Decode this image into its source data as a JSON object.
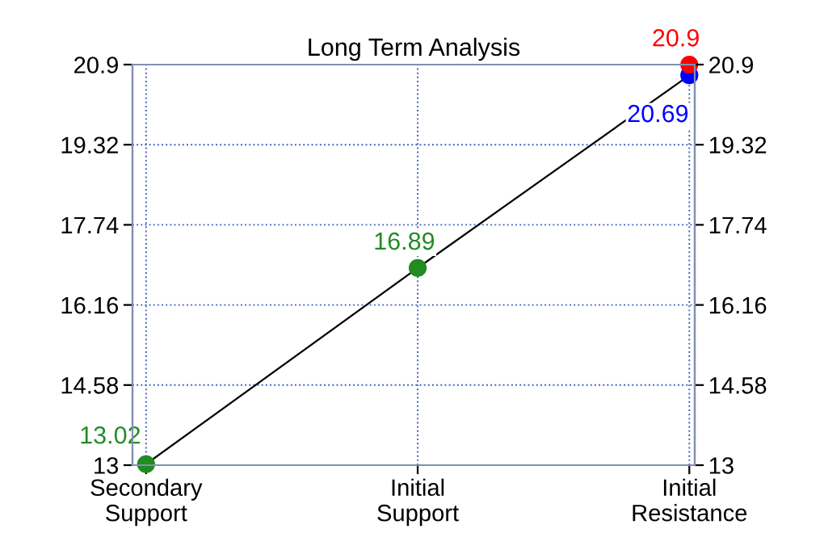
{
  "chart_data": {
    "type": "line",
    "title": "Long Term Analysis",
    "categories": [
      "Secondary\nSupport",
      "Initial\nSupport",
      "Initial\nResistance"
    ],
    "series": [
      {
        "color": "#000000",
        "colors": [
          "#228b22",
          "#228b22",
          "#0000ff"
        ],
        "values": [
          13.02,
          16.89,
          20.69
        ],
        "value_labels": [
          "13.02",
          "16.89",
          "20.69"
        ]
      },
      {
        "type": "scatter",
        "color": "#ff0000",
        "values": [
          null,
          null,
          20.9
        ],
        "value_labels": [
          null,
          null,
          "20.9"
        ]
      }
    ],
    "ylim": [
      13,
      20.9
    ],
    "yticks": [
      13,
      14.58,
      16.16,
      17.74,
      19.32,
      20.9
    ],
    "y2lim": [
      13,
      20.9
    ],
    "y2ticks": [
      13,
      14.58,
      16.16,
      17.74,
      19.32,
      20.9
    ],
    "grid": true,
    "marker": "circle",
    "line_style": "solid"
  }
}
